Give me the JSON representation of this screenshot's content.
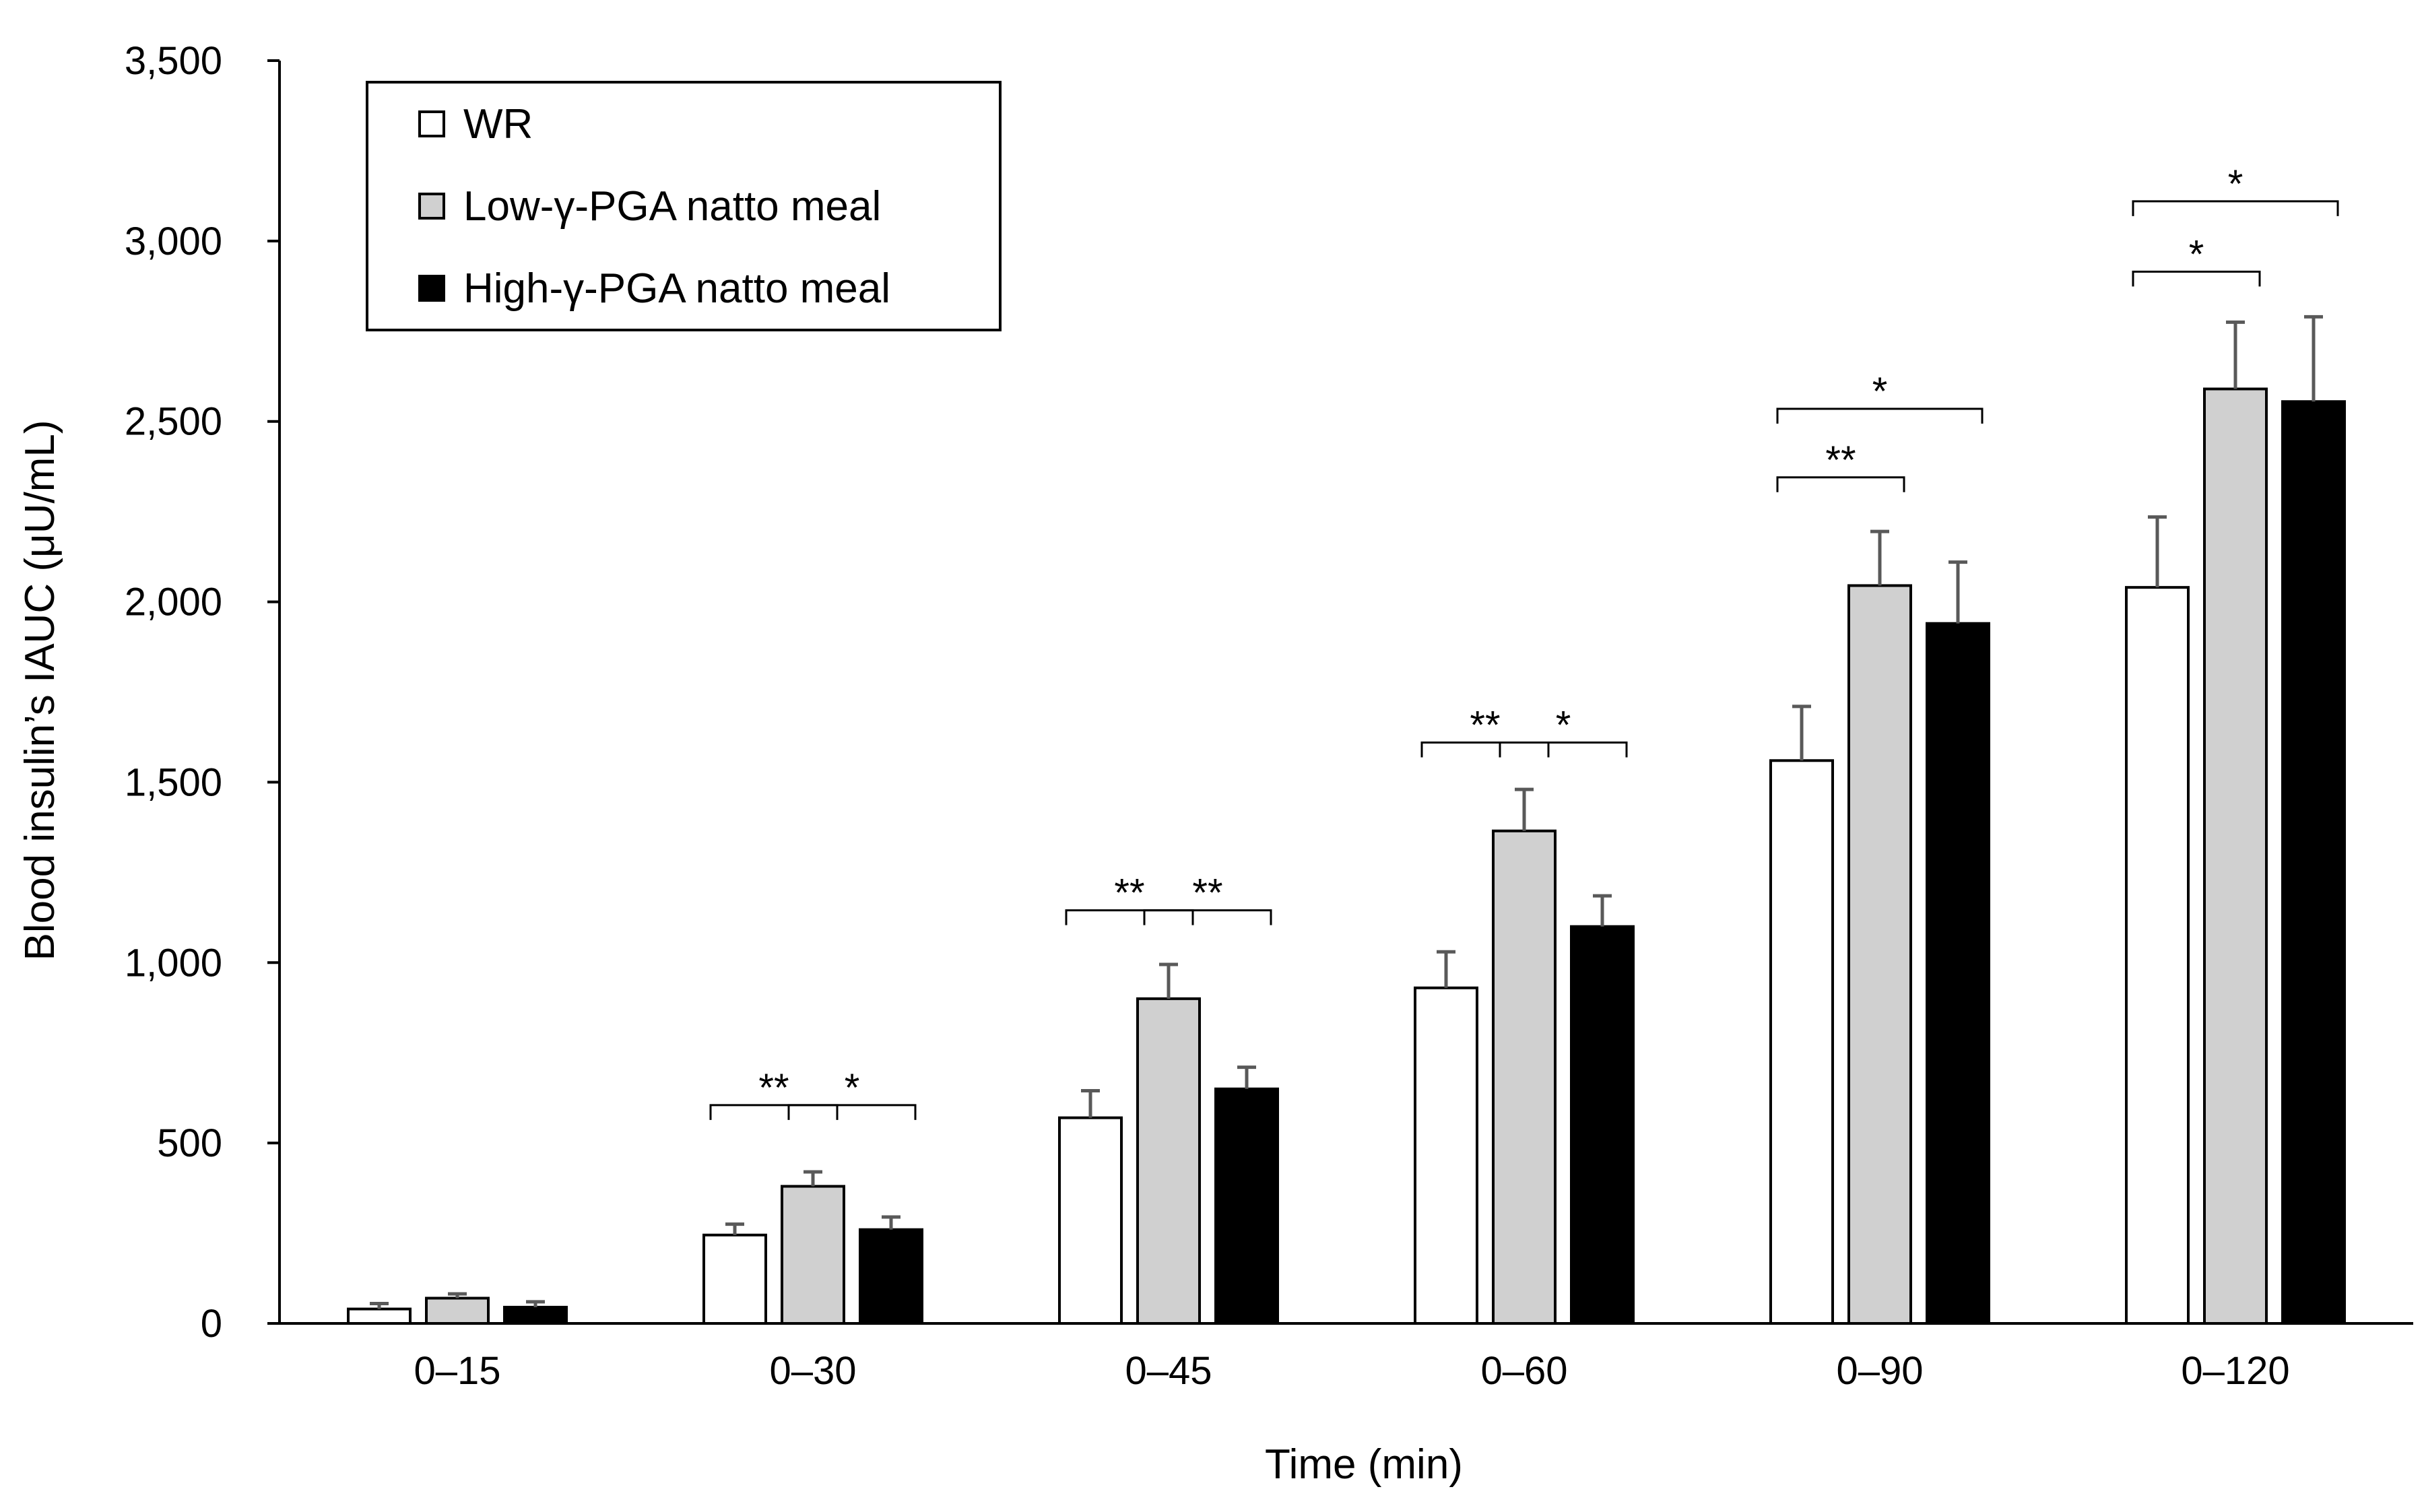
{
  "chart_data": {
    "type": "bar",
    "title": "",
    "xlabel": "Time (min)",
    "ylabel": "Blood insulin’s IAUC (μU/mL)",
    "ylim": [
      0,
      3500
    ],
    "yticks": [
      "0",
      "500",
      "1,000",
      "1,500",
      "2,000",
      "2,500",
      "3,000",
      "3,500"
    ],
    "ytick_values": [
      0,
      500,
      1000,
      1500,
      2000,
      2500,
      3000,
      3500
    ],
    "categories": [
      "0–15",
      "0–30",
      "0–45",
      "0–60",
      "0–90",
      "0–120"
    ],
    "legend_position": "top-left",
    "series": [
      {
        "name": "WR",
        "color": "#ffffff",
        "values": [
          40,
          245,
          570,
          930,
          1560,
          2040
        ],
        "errors": [
          15,
          30,
          75,
          100,
          150,
          195
        ]
      },
      {
        "name": "Low-γ-PGA natto meal",
        "color": "#d0d0d0",
        "values": [
          70,
          380,
          900,
          1365,
          2045,
          2590
        ],
        "errors": [
          12,
          40,
          95,
          115,
          150,
          185
        ]
      },
      {
        "name": "High-γ-PGA natto meal",
        "color": "#000000",
        "values": [
          45,
          260,
          650,
          1100,
          1940,
          2555
        ],
        "errors": [
          15,
          35,
          60,
          85,
          170,
          235
        ]
      }
    ],
    "significance": [
      {
        "category": "0–30",
        "from": "WR",
        "to": "Low-γ-PGA natto meal",
        "label": "**",
        "y": 605
      },
      {
        "category": "0–30",
        "from": "Low-γ-PGA natto meal",
        "to": "High-γ-PGA natto meal",
        "label": "*",
        "y": 605
      },
      {
        "category": "0–45",
        "from": "WR",
        "to": "Low-γ-PGA natto meal",
        "label": "**",
        "y": 1145
      },
      {
        "category": "0–45",
        "from": "Low-γ-PGA natto meal",
        "to": "High-γ-PGA natto meal",
        "label": "**",
        "y": 1145
      },
      {
        "category": "0–60",
        "from": "WR",
        "to": "Low-γ-PGA natto meal",
        "label": "**",
        "y": 1610
      },
      {
        "category": "0–60",
        "from": "Low-γ-PGA natto meal",
        "to": "High-γ-PGA natto meal",
        "label": "*",
        "y": 1610
      },
      {
        "category": "0–90",
        "from": "WR",
        "to": "Low-γ-PGA natto meal",
        "label": "**",
        "y": 2345
      },
      {
        "category": "0–90",
        "from": "WR",
        "to": "High-γ-PGA natto meal",
        "label": "*",
        "y": 2535
      },
      {
        "category": "0–120",
        "from": "WR",
        "to": "Low-γ-PGA natto meal",
        "label": "*",
        "y": 2915
      },
      {
        "category": "0–120",
        "from": "WR",
        "to": "High-γ-PGA natto meal",
        "label": "*",
        "y": 3110
      }
    ]
  }
}
